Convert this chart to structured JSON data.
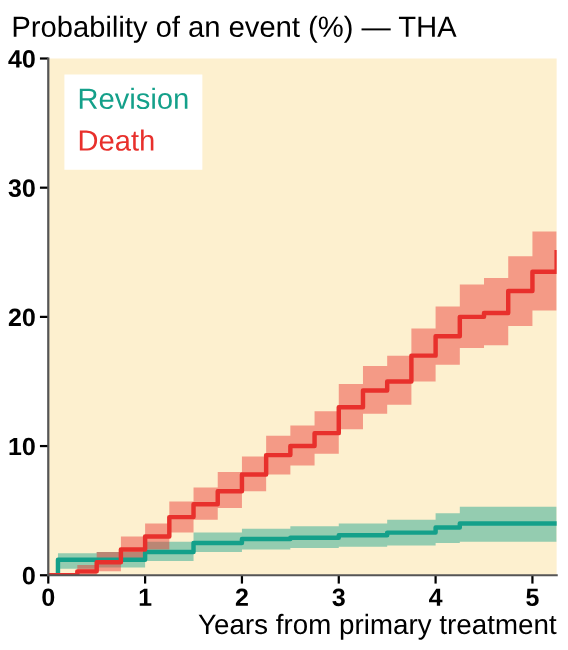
{
  "chart_data": {
    "type": "step",
    "title": "Probability of an event (%) — THA",
    "xlabel": "Years from primary treatment",
    "xlim": [
      0,
      5.25
    ],
    "xticks": [
      0,
      1,
      2,
      3,
      4,
      5
    ],
    "ylim": [
      0,
      40
    ],
    "yticks": [
      0,
      10,
      20,
      30,
      40
    ],
    "grid": false,
    "legend": "top left",
    "series": [
      {
        "name": "Revision",
        "color": "#14a08a",
        "x": [
          0,
          0.1,
          0.5,
          1,
          1.5,
          2,
          2.5,
          3,
          3.5,
          4,
          4.25,
          5.25
        ],
        "values": [
          0,
          1.2,
          1.2,
          1.8,
          2.5,
          2.8,
          2.9,
          3.1,
          3.3,
          3.7,
          4,
          4
        ],
        "lower": [
          0,
          0.5,
          0.6,
          1.1,
          1.8,
          2.0,
          2.1,
          2.2,
          2.3,
          2.5,
          2.6,
          2.6
        ],
        "upper": [
          0,
          1.7,
          1.8,
          2.6,
          3.3,
          3.6,
          3.8,
          4.0,
          4.3,
          4.8,
          5.3,
          5.3
        ]
      },
      {
        "name": "Death",
        "color": "#e8302c",
        "x": [
          0,
          0.3,
          0.5,
          0.75,
          1,
          1.25,
          1.5,
          1.75,
          2,
          2.25,
          2.5,
          2.75,
          3,
          3.25,
          3.5,
          3.75,
          4,
          4.25,
          4.5,
          4.75,
          5,
          5.25
        ],
        "values": [
          0,
          0.3,
          1,
          2,
          3,
          4.5,
          5.5,
          6.5,
          7.8,
          9.3,
          10,
          11,
          13,
          14.3,
          15,
          17,
          18.5,
          20,
          20.3,
          22,
          23.5,
          25
        ],
        "lower": [
          0,
          0,
          0.3,
          1.2,
          2,
          3.3,
          4.3,
          5.2,
          6.5,
          7.8,
          8.5,
          9.4,
          11.3,
          12.5,
          13.2,
          15,
          16.3,
          17.6,
          17.8,
          19.3,
          20.5,
          21.5
        ],
        "upper": [
          0,
          0.8,
          1.8,
          3,
          4,
          5.7,
          6.8,
          8,
          9.2,
          10.8,
          11.6,
          12.7,
          14.8,
          16.2,
          17,
          19.1,
          20.8,
          22.5,
          23,
          24.7,
          26.6,
          29.5
        ]
      }
    ]
  }
}
